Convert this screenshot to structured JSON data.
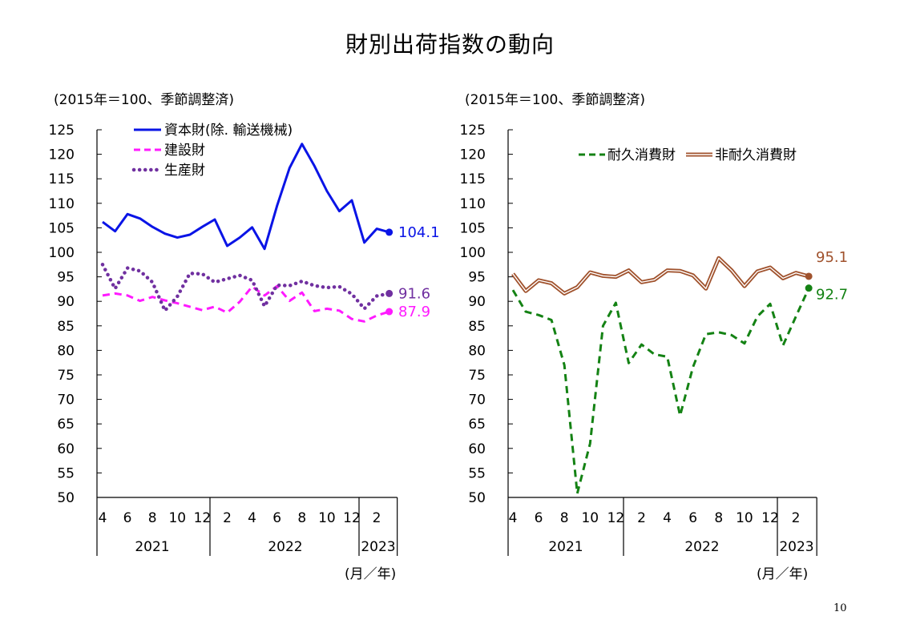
{
  "page": {
    "title": "財別出荷指数の動向",
    "number": "10"
  },
  "chart_data": [
    {
      "type": "line",
      "unit_note": "(2015年＝100、季節調整済)",
      "xlabel": "(月／年)",
      "ylim": [
        50,
        125
      ],
      "yticks": [
        50,
        55,
        60,
        65,
        70,
        75,
        80,
        85,
        90,
        95,
        100,
        105,
        110,
        115,
        120,
        125
      ],
      "month_labels": [
        "4",
        "6",
        "8",
        "10",
        "12",
        "2",
        "4",
        "6",
        "8",
        "10",
        "12",
        "2"
      ],
      "year_labels": [
        "2021",
        "2022",
        "2023"
      ],
      "x": [
        "2021-04",
        "2021-05",
        "2021-06",
        "2021-07",
        "2021-08",
        "2021-09",
        "2021-10",
        "2021-11",
        "2021-12",
        "2022-01",
        "2022-02",
        "2022-03",
        "2022-04",
        "2022-05",
        "2022-06",
        "2022-07",
        "2022-08",
        "2022-09",
        "2022-10",
        "2022-11",
        "2022-12",
        "2023-01",
        "2023-02",
        "2023-03"
      ],
      "legend_placement": "top-center",
      "series": [
        {
          "name": "資本財(除. 輸送機械)",
          "color": "#0a14e6",
          "style": "solid",
          "end_label": "104.1",
          "values": [
            106.2,
            104.3,
            107.8,
            106.9,
            105.2,
            103.8,
            103.0,
            103.6,
            105.2,
            106.7,
            101.3,
            103.0,
            105.1,
            100.7,
            109.5,
            117.2,
            122.1,
            117.6,
            112.5,
            108.4,
            110.6,
            102.0,
            104.8,
            104.1
          ]
        },
        {
          "name": "建設財",
          "color": "#ff1aff",
          "style": "dashed",
          "end_label": "87.9",
          "values": [
            91.2,
            91.6,
            91.2,
            90.1,
            90.9,
            90.2,
            89.6,
            88.9,
            88.2,
            88.9,
            87.7,
            89.9,
            93.0,
            91.2,
            93.1,
            90.1,
            91.8,
            88.0,
            88.5,
            88.1,
            86.4,
            85.9,
            87.1,
            87.9
          ]
        },
        {
          "name": "生産財",
          "color": "#7030a0",
          "style": "dotted",
          "end_label": "91.6",
          "values": [
            97.5,
            92.6,
            96.8,
            96.2,
            93.9,
            88.1,
            91.0,
            95.7,
            95.6,
            93.9,
            94.6,
            95.3,
            94.3,
            89.0,
            93.3,
            93.2,
            94.1,
            93.2,
            92.8,
            93.0,
            91.5,
            88.5,
            91.1,
            91.6
          ]
        }
      ]
    },
    {
      "type": "line",
      "unit_note": "(2015年＝100、季節調整済)",
      "xlabel": "(月／年)",
      "ylim": [
        50,
        125
      ],
      "yticks": [
        50,
        55,
        60,
        65,
        70,
        75,
        80,
        85,
        90,
        95,
        100,
        105,
        110,
        115,
        120,
        125
      ],
      "month_labels": [
        "4",
        "6",
        "8",
        "10",
        "12",
        "2",
        "4",
        "6",
        "8",
        "10",
        "12",
        "2"
      ],
      "year_labels": [
        "2021",
        "2022",
        "2023"
      ],
      "x": [
        "2021-04",
        "2021-05",
        "2021-06",
        "2021-07",
        "2021-08",
        "2021-09",
        "2021-10",
        "2021-11",
        "2021-12",
        "2022-01",
        "2022-02",
        "2022-03",
        "2022-04",
        "2022-05",
        "2022-06",
        "2022-07",
        "2022-08",
        "2022-09",
        "2022-10",
        "2022-11",
        "2022-12",
        "2023-01",
        "2023-02",
        "2023-03"
      ],
      "legend_placement": "top",
      "series": [
        {
          "name": "耐久消費財",
          "color": "#148214",
          "style": "dashed",
          "end_label": "92.7",
          "values": [
            92.3,
            87.9,
            87.2,
            86.2,
            77.0,
            50.8,
            61.0,
            85.0,
            89.7,
            77.4,
            81.2,
            79.2,
            78.7,
            66.7,
            76.6,
            83.3,
            83.7,
            83.1,
            81.4,
            86.9,
            89.5,
            81.0,
            86.9,
            92.7
          ]
        },
        {
          "name": "非耐久消費財",
          "color": "#a0522d",
          "style": "double",
          "end_label": "95.1",
          "values": [
            95.6,
            92.1,
            94.3,
            93.7,
            91.6,
            92.9,
            95.9,
            95.2,
            95.0,
            96.3,
            93.9,
            94.4,
            96.3,
            96.2,
            95.3,
            92.6,
            98.8,
            96.3,
            93.1,
            96.1,
            96.9,
            94.7,
            95.8,
            95.1
          ]
        }
      ]
    }
  ]
}
